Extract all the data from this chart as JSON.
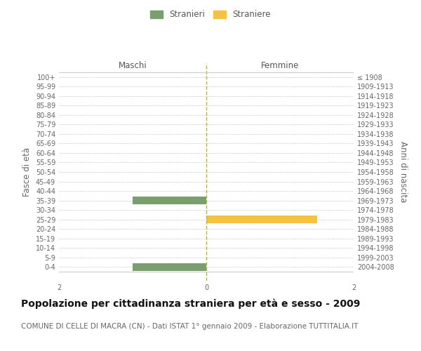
{
  "age_groups": [
    "100+",
    "95-99",
    "90-94",
    "85-89",
    "80-84",
    "75-79",
    "70-74",
    "65-69",
    "60-64",
    "55-59",
    "50-54",
    "45-49",
    "40-44",
    "35-39",
    "30-34",
    "25-29",
    "20-24",
    "15-19",
    "10-14",
    "5-9",
    "0-4"
  ],
  "birth_years": [
    "≤ 1908",
    "1909-1913",
    "1914-1918",
    "1919-1923",
    "1924-1928",
    "1929-1933",
    "1934-1938",
    "1939-1943",
    "1944-1948",
    "1949-1953",
    "1954-1958",
    "1959-1963",
    "1964-1968",
    "1969-1973",
    "1974-1978",
    "1979-1983",
    "1984-1988",
    "1989-1993",
    "1994-1998",
    "1999-2003",
    "2004-2008"
  ],
  "males": [
    0,
    0,
    0,
    0,
    0,
    0,
    0,
    0,
    0,
    0,
    0,
    0,
    0,
    1,
    0,
    0,
    0,
    0,
    0,
    0,
    1
  ],
  "females": [
    0,
    0,
    0,
    0,
    0,
    0,
    0,
    0,
    0,
    0,
    0,
    0,
    0,
    0,
    0,
    1.5,
    0,
    0,
    0,
    0,
    0
  ],
  "xlim": [
    -2,
    2
  ],
  "xticks": [
    -2,
    0,
    2
  ],
  "xticklabels": [
    "2",
    "0",
    "2"
  ],
  "male_color": "#7a9e6e",
  "female_color": "#f5c242",
  "male_label": "Stranieri",
  "female_label": "Straniere",
  "maschi_label": "Maschi",
  "femmine_label": "Femmine",
  "ylabel_left": "Fasce di età",
  "ylabel_right": "Anni di nascita",
  "title": "Popolazione per cittadinanza straniera per età e sesso - 2009",
  "subtitle": "COMUNE DI CELLE DI MACRA (CN) - Dati ISTAT 1° gennaio 2009 - Elaborazione TUTTITALIA.IT",
  "background_color": "#ffffff",
  "grid_color": "#cccccc",
  "bar_height": 0.8,
  "title_fontsize": 10,
  "subtitle_fontsize": 7.5,
  "tick_fontsize": 7,
  "label_fontsize": 8.5
}
